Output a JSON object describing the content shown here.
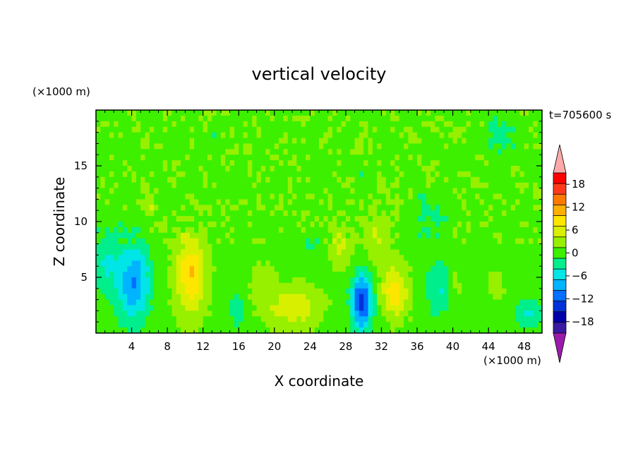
{
  "chart_data": {
    "type": "heatmap",
    "title": "vertical velocity",
    "xlabel": "X coordinate",
    "ylabel": "Z coordinate",
    "x_unit": "(×1000 m)",
    "y_unit": "(×1000 m)",
    "time_label": "t=705600 s",
    "xlim": [
      0,
      50
    ],
    "ylim": [
      0,
      20
    ],
    "x_ticks": [
      4,
      8,
      12,
      16,
      20,
      24,
      28,
      32,
      36,
      40,
      44,
      48
    ],
    "y_ticks": [
      5,
      10,
      15
    ],
    "colorbar": {
      "range": [
        -21,
        21
      ],
      "step": 3,
      "tick_values": [
        -18,
        -12,
        -6,
        0,
        6,
        12,
        18
      ],
      "colors": [
        "#ff0000",
        "#ff3a1a",
        "#ff7a00",
        "#ffb000",
        "#ffe600",
        "#d8f000",
        "#96f000",
        "#3cf000",
        "#00ee8c",
        "#00e6e6",
        "#00b4ff",
        "#006eff",
        "#0032d8",
        "#0000aa",
        "#3a1aa0"
      ],
      "over_color": "#ffaaaa",
      "under_color": "#9a1aaa"
    },
    "grid": false,
    "background_value": -1,
    "features": [
      {
        "x": 4.2,
        "z": 4.5,
        "w": -11,
        "sx": 1.3,
        "sz": 2.4
      },
      {
        "x": 10.6,
        "z": 5.2,
        "w": 10,
        "sx": 1.2,
        "sz": 2.4
      },
      {
        "x": 22.0,
        "z": 2.3,
        "w": 6,
        "sx": 2.2,
        "sz": 1.3
      },
      {
        "x": 29.8,
        "z": 2.8,
        "w": -16,
        "sx": 0.8,
        "sz": 1.7
      },
      {
        "x": 33.5,
        "z": 3.7,
        "w": 9,
        "sx": 1.0,
        "sz": 1.6
      },
      {
        "x": 27.5,
        "z": 7.7,
        "w": 4.5,
        "sx": 0.9,
        "sz": 1.4
      },
      {
        "x": 38.5,
        "z": 4.0,
        "w": -5,
        "sx": 1.3,
        "sz": 1.8
      },
      {
        "x": 40.2,
        "z": 4.6,
        "w": 3.5,
        "sx": 0.6,
        "sz": 1.2
      },
      {
        "x": 45.0,
        "z": 4.5,
        "w": 3.5,
        "sx": 0.5,
        "sz": 0.8
      },
      {
        "x": 48.5,
        "z": 1.8,
        "w": -5.5,
        "sx": 1.0,
        "sz": 1.0
      },
      {
        "x": 15.8,
        "z": 2.1,
        "w": -4.5,
        "sx": 0.6,
        "sz": 1.2
      },
      {
        "x": 6.0,
        "z": 11.5,
        "w": 3.5,
        "sx": 0.5,
        "sz": 1.0
      },
      {
        "x": 31.5,
        "z": 9.0,
        "w": 3.5,
        "sx": 1.0,
        "sz": 2.0
      },
      {
        "x": 24.0,
        "z": 8.0,
        "w": -4,
        "sx": 0.6,
        "sz": 0.6
      },
      {
        "x": 1.2,
        "z": 6.5,
        "w": -5,
        "sx": 1.0,
        "sz": 2.0
      },
      {
        "x": 18.5,
        "z": 4.8,
        "w": 2.5,
        "sx": 1.0,
        "sz": 1.0
      },
      {
        "x": 37.5,
        "z": 10.5,
        "w": -3,
        "sx": 1.2,
        "sz": 1.5
      },
      {
        "x": 45.0,
        "z": 17.5,
        "w": -3,
        "sx": 1.0,
        "sz": 1.0
      }
    ]
  }
}
